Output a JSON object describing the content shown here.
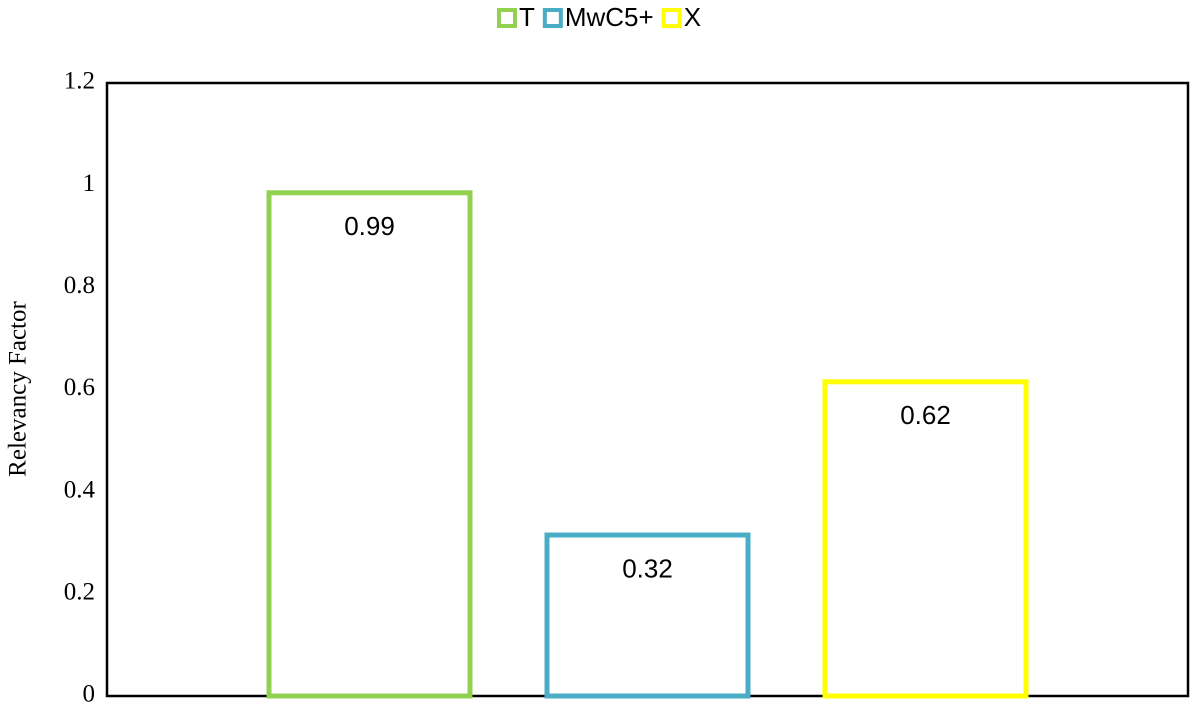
{
  "chart_data": {
    "type": "bar",
    "categories": [
      null
    ],
    "series": [
      {
        "name": "T",
        "color": "#92d050",
        "values": [
          0.99
        ]
      },
      {
        "name": "MwC5+",
        "color": "#4bacc6",
        "values": [
          0.32
        ]
      },
      {
        "name": "X",
        "color": "#ffff00",
        "values": [
          0.62
        ]
      }
    ],
    "y_label": "Relevancy Factor",
    "ylim": [
      0,
      1.2
    ],
    "yticks": [
      0,
      0.2,
      0.4,
      0.6,
      0.8,
      1,
      1.2
    ],
    "grid": false,
    "legend": "top"
  }
}
